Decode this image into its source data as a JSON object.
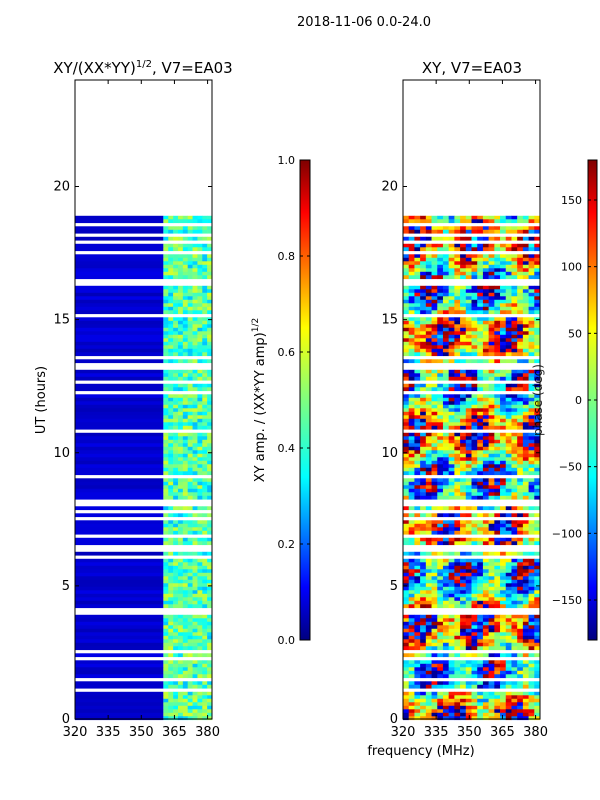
{
  "figure": {
    "suptitle": "2018-11-06 0.0-24.0",
    "shared_xlabel": "frequency (MHz)"
  },
  "chart_data": [
    {
      "type": "heatmap",
      "title": "XY/(XX*YY)^1/2, V7=EA03",
      "title_base": "XY/(XX*YY)",
      "title_exp": "1/2",
      "title_tail": ", V7=EA03",
      "xlabel": "",
      "ylabel": "UT (hours)",
      "x_ticks": [
        320,
        335,
        350,
        365,
        380
      ],
      "y_ticks": [
        0,
        5,
        10,
        15,
        20
      ],
      "xlim": [
        320,
        382
      ],
      "ylim": [
        0,
        24
      ],
      "data_extent_hours": [
        0,
        18.9
      ],
      "bright_band_mhz": [
        360,
        382
      ],
      "colorbar": {
        "label_base": "XY amp. / (XX*YY amp)",
        "label_exp": "1/2",
        "ticks": [
          0.0,
          0.2,
          0.4,
          0.6,
          0.8,
          1.0
        ],
        "tick_labels": [
          "0.0",
          "0.2",
          "0.4",
          "0.6",
          "0.8",
          "1.0"
        ],
        "range": [
          0.0,
          1.0
        ]
      }
    },
    {
      "type": "heatmap",
      "title": "XY, V7=EA03",
      "xlabel": "frequency (MHz)",
      "ylabel": "",
      "x_ticks": [
        320,
        335,
        350,
        365,
        380
      ],
      "y_ticks": [
        0,
        5,
        10,
        15,
        20
      ],
      "xlim": [
        320,
        382
      ],
      "ylim": [
        0,
        24
      ],
      "data_extent_hours": [
        0,
        18.9
      ],
      "colorbar": {
        "label": "phase (deg)",
        "ticks": [
          -150,
          -100,
          -50,
          0,
          50,
          100,
          150
        ],
        "tick_labels": [
          "−150",
          "−100",
          "−50",
          "0",
          "50",
          "100",
          "150"
        ],
        "range": [
          -180,
          180
        ]
      }
    }
  ],
  "colors": {
    "jet": [
      "#00007f",
      "#0000ff",
      "#007fff",
      "#00ffff",
      "#7fff7f",
      "#ffff00",
      "#ff7f00",
      "#ff0000",
      "#7f0000"
    ],
    "background": "#ffffff",
    "axis": "#000000"
  }
}
